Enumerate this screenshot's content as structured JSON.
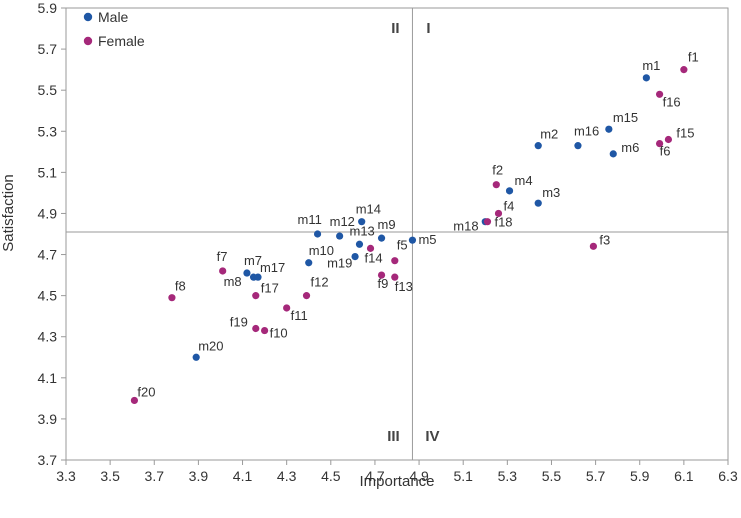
{
  "chart_data": {
    "type": "scatter",
    "title": "",
    "xlabel": "Importance",
    "ylabel": "Satisfaction",
    "xlim": [
      3.3,
      6.3
    ],
    "ylim": [
      3.7,
      5.9
    ],
    "xticks": [
      "3.3",
      "3.5",
      "3.7",
      "3.9",
      "4.1",
      "4.3",
      "4.5",
      "4.7",
      "4.9",
      "5.1",
      "5.3",
      "5.5",
      "5.7",
      "5.9",
      "6.1",
      "6.3"
    ],
    "yticks": [
      "3.7",
      "3.9",
      "4.1",
      "4.3",
      "4.5",
      "4.7",
      "4.9",
      "5.1",
      "5.3",
      "5.5",
      "5.7",
      "5.9"
    ],
    "reference_lines": {
      "x": 4.87,
      "y": 4.81
    },
    "quadrants": [
      "I",
      "II",
      "III",
      "IV"
    ],
    "series": [
      {
        "name": "Male",
        "color": "#1f57a5",
        "points": [
          {
            "label": "m1",
            "x": 5.93,
            "y": 5.56
          },
          {
            "label": "m2",
            "x": 5.44,
            "y": 5.23
          },
          {
            "label": "m3",
            "x": 5.44,
            "y": 4.95
          },
          {
            "label": "m4",
            "x": 5.31,
            "y": 5.01
          },
          {
            "label": "m5",
            "x": 4.87,
            "y": 4.77
          },
          {
            "label": "m6",
            "x": 5.78,
            "y": 5.19
          },
          {
            "label": "m7",
            "x": 4.12,
            "y": 4.61
          },
          {
            "label": "m8",
            "x": 4.15,
            "y": 4.59
          },
          {
            "label": "m9",
            "x": 4.73,
            "y": 4.78
          },
          {
            "label": "m10",
            "x": 4.4,
            "y": 4.66
          },
          {
            "label": "m11",
            "x": 4.44,
            "y": 4.8
          },
          {
            "label": "m12",
            "x": 4.54,
            "y": 4.79
          },
          {
            "label": "m13",
            "x": 4.63,
            "y": 4.75
          },
          {
            "label": "m14",
            "x": 4.64,
            "y": 4.86
          },
          {
            "label": "m15",
            "x": 5.76,
            "y": 5.31
          },
          {
            "label": "m16",
            "x": 5.62,
            "y": 5.23
          },
          {
            "label": "m17",
            "x": 4.17,
            "y": 4.59
          },
          {
            "label": "m18",
            "x": 5.2,
            "y": 4.86
          },
          {
            "label": "m19",
            "x": 4.61,
            "y": 4.69
          },
          {
            "label": "m20",
            "x": 3.89,
            "y": 4.2
          }
        ]
      },
      {
        "name": "Female",
        "color": "#a5287a",
        "points": [
          {
            "label": "f1",
            "x": 6.1,
            "y": 5.6
          },
          {
            "label": "f2",
            "x": 5.25,
            "y": 5.04
          },
          {
            "label": "f3",
            "x": 5.69,
            "y": 4.74
          },
          {
            "label": "f4",
            "x": 5.26,
            "y": 4.9
          },
          {
            "label": "f5",
            "x": 4.79,
            "y": 4.67
          },
          {
            "label": "f6",
            "x": 5.99,
            "y": 5.24
          },
          {
            "label": "f7",
            "x": 4.01,
            "y": 4.62
          },
          {
            "label": "f8",
            "x": 3.78,
            "y": 4.49
          },
          {
            "label": "f9",
            "x": 4.73,
            "y": 4.6
          },
          {
            "label": "f10",
            "x": 4.2,
            "y": 4.33
          },
          {
            "label": "f11",
            "x": 4.3,
            "y": 4.44
          },
          {
            "label": "f12",
            "x": 4.39,
            "y": 4.5
          },
          {
            "label": "f13",
            "x": 4.79,
            "y": 4.59
          },
          {
            "label": "f14",
            "x": 4.68,
            "y": 4.73
          },
          {
            "label": "f15",
            "x": 6.03,
            "y": 5.26
          },
          {
            "label": "f16",
            "x": 5.99,
            "y": 5.48
          },
          {
            "label": "f17",
            "x": 4.16,
            "y": 4.5
          },
          {
            "label": "f18",
            "x": 5.21,
            "y": 4.86
          },
          {
            "label": "f19",
            "x": 4.16,
            "y": 4.34
          },
          {
            "label": "f20",
            "x": 3.61,
            "y": 3.99
          }
        ]
      }
    ]
  }
}
